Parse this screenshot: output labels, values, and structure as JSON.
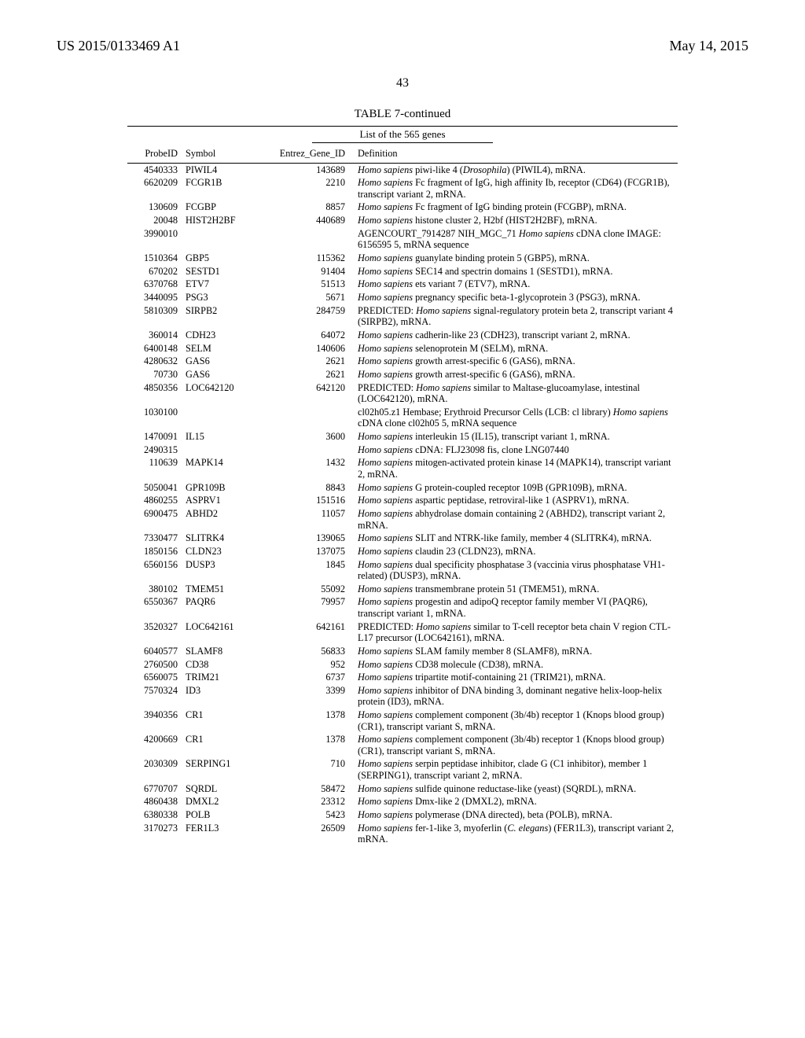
{
  "header": {
    "left": "US 2015/0133469 A1",
    "right": "May 14, 2015"
  },
  "page_number": "43",
  "table": {
    "caption": "TABLE 7-continued",
    "list_title": "List of the 565 genes",
    "columns": {
      "probe": "ProbeID",
      "symbol": "Symbol",
      "entrez": "Entrez_Gene_ID",
      "definition": "Definition"
    },
    "font_size_pt": 12.3,
    "rows": [
      {
        "probe": "4540333",
        "symbol": "PIWIL4",
        "entrez": "143689",
        "def": [
          [
            "i",
            "Homo sapiens"
          ],
          [
            "t",
            " piwi-like 4 ("
          ],
          [
            "i",
            "Drosophila"
          ],
          [
            "t",
            ") (PIWIL4), mRNA."
          ]
        ]
      },
      {
        "probe": "6620209",
        "symbol": "FCGR1B",
        "entrez": "2210",
        "def": [
          [
            "i",
            "Homo sapiens"
          ],
          [
            "t",
            " Fc fragment of IgG, high affinity Ib, receptor (CD64) (FCGR1B), transcript variant 2, mRNA."
          ]
        ]
      },
      {
        "probe": "130609",
        "symbol": "FCGBP",
        "entrez": "8857",
        "def": [
          [
            "i",
            "Homo sapiens"
          ],
          [
            "t",
            " Fc fragment of IgG binding protein (FCGBP), mRNA."
          ]
        ]
      },
      {
        "probe": "20048",
        "symbol": "HIST2H2BF",
        "entrez": "440689",
        "def": [
          [
            "i",
            "Homo sapiens"
          ],
          [
            "t",
            " histone cluster 2, H2bf (HIST2H2BF), mRNA."
          ]
        ]
      },
      {
        "probe": "3990010",
        "symbol": "",
        "entrez": "",
        "def": [
          [
            "t",
            "AGENCOURT_7914287 NIH_MGC_71 "
          ],
          [
            "i",
            "Homo sapiens"
          ],
          [
            "t",
            " cDNA clone IMAGE: 6156595 5, mRNA sequence"
          ]
        ]
      },
      {
        "probe": "1510364",
        "symbol": "GBP5",
        "entrez": "115362",
        "def": [
          [
            "i",
            "Homo sapiens"
          ],
          [
            "t",
            " guanylate binding protein 5 (GBP5), mRNA."
          ]
        ]
      },
      {
        "probe": "670202",
        "symbol": "SESTD1",
        "entrez": "91404",
        "def": [
          [
            "i",
            "Homo sapiens"
          ],
          [
            "t",
            " SEC14 and spectrin domains 1 (SESTD1), mRNA."
          ]
        ]
      },
      {
        "probe": "6370768",
        "symbol": "ETV7",
        "entrez": "51513",
        "def": [
          [
            "i",
            "Homo sapiens"
          ],
          [
            "t",
            " ets variant 7 (ETV7), mRNA."
          ]
        ]
      },
      {
        "probe": "3440095",
        "symbol": "PSG3",
        "entrez": "5671",
        "def": [
          [
            "i",
            "Homo sapiens"
          ],
          [
            "t",
            " pregnancy specific beta-1-glycoprotein 3 (PSG3), mRNA."
          ]
        ]
      },
      {
        "probe": "5810309",
        "symbol": "SIRPB2",
        "entrez": "284759",
        "def": [
          [
            "t",
            "PREDICTED: "
          ],
          [
            "i",
            "Homo sapiens"
          ],
          [
            "t",
            " signal-regulatory protein beta 2, transcript variant 4 (SIRPB2), mRNA."
          ]
        ]
      },
      {
        "probe": "360014",
        "symbol": "CDH23",
        "entrez": "64072",
        "def": [
          [
            "i",
            "Homo sapiens"
          ],
          [
            "t",
            " cadherin-like 23 (CDH23), transcript variant 2, mRNA."
          ]
        ]
      },
      {
        "probe": "6400148",
        "symbol": "SELM",
        "entrez": "140606",
        "def": [
          [
            "i",
            "Homo sapiens"
          ],
          [
            "t",
            " selenoprotein M (SELM), mRNA."
          ]
        ]
      },
      {
        "probe": "4280632",
        "symbol": "GAS6",
        "entrez": "2621",
        "def": [
          [
            "i",
            "Homo sapiens"
          ],
          [
            "t",
            " growth arrest-specific 6 (GAS6), mRNA."
          ]
        ]
      },
      {
        "probe": "70730",
        "symbol": "GAS6",
        "entrez": "2621",
        "def": [
          [
            "i",
            "Homo sapiens"
          ],
          [
            "t",
            " growth arrest-specific 6 (GAS6), mRNA."
          ]
        ]
      },
      {
        "probe": "4850356",
        "symbol": "LOC642120",
        "entrez": "642120",
        "def": [
          [
            "t",
            "PREDICTED: "
          ],
          [
            "i",
            "Homo sapiens"
          ],
          [
            "t",
            " similar to Maltase-glucoamylase, intestinal (LOC642120), mRNA."
          ]
        ]
      },
      {
        "probe": "1030100",
        "symbol": "",
        "entrez": "",
        "def": [
          [
            "t",
            "cl02h05.z1 Hembase; Erythroid Precursor Cells (LCB: cl library) "
          ],
          [
            "i",
            "Homo sapiens"
          ],
          [
            "t",
            " cDNA clone cl02h05 5, mRNA sequence"
          ]
        ]
      },
      {
        "probe": "1470091",
        "symbol": "IL15",
        "entrez": "3600",
        "def": [
          [
            "i",
            "Homo sapiens"
          ],
          [
            "t",
            " interleukin 15 (IL15), transcript variant 1, mRNA."
          ]
        ]
      },
      {
        "probe": "2490315",
        "symbol": "",
        "entrez": "",
        "def": [
          [
            "i",
            "Homo sapiens"
          ],
          [
            "t",
            " cDNA: FLJ23098 fis, clone LNG07440"
          ]
        ]
      },
      {
        "probe": "110639",
        "symbol": "MAPK14",
        "entrez": "1432",
        "def": [
          [
            "i",
            "Homo sapiens"
          ],
          [
            "t",
            " mitogen-activated protein kinase 14 (MAPK14), transcript variant 2, mRNA."
          ]
        ]
      },
      {
        "probe": "5050041",
        "symbol": "GPR109B",
        "entrez": "8843",
        "def": [
          [
            "i",
            "Homo sapiens"
          ],
          [
            "t",
            " G protein-coupled receptor 109B (GPR109B), mRNA."
          ]
        ]
      },
      {
        "probe": "4860255",
        "symbol": "ASPRV1",
        "entrez": "151516",
        "def": [
          [
            "i",
            "Homo sapiens"
          ],
          [
            "t",
            " aspartic peptidase, retroviral-like 1 (ASPRV1), mRNA."
          ]
        ]
      },
      {
        "probe": "6900475",
        "symbol": "ABHD2",
        "entrez": "11057",
        "def": [
          [
            "i",
            "Homo sapiens"
          ],
          [
            "t",
            " abhydrolase domain containing 2 (ABHD2), transcript variant 2, mRNA."
          ]
        ]
      },
      {
        "probe": "7330477",
        "symbol": "SLITRK4",
        "entrez": "139065",
        "def": [
          [
            "i",
            "Homo sapiens"
          ],
          [
            "t",
            " SLIT and NTRK-like family, member 4 (SLITRK4), mRNA."
          ]
        ]
      },
      {
        "probe": "1850156",
        "symbol": "CLDN23",
        "entrez": "137075",
        "def": [
          [
            "i",
            "Homo sapiens"
          ],
          [
            "t",
            " claudin 23 (CLDN23), mRNA."
          ]
        ]
      },
      {
        "probe": "6560156",
        "symbol": "DUSP3",
        "entrez": "1845",
        "def": [
          [
            "i",
            "Homo sapiens"
          ],
          [
            "t",
            " dual specificity phosphatase 3 (vaccinia virus phosphatase VH1-related) (DUSP3), mRNA."
          ]
        ]
      },
      {
        "probe": "380102",
        "symbol": "TMEM51",
        "entrez": "55092",
        "def": [
          [
            "i",
            "Homo sapiens"
          ],
          [
            "t",
            " transmembrane protein 51 (TMEM51), mRNA."
          ]
        ]
      },
      {
        "probe": "6550367",
        "symbol": "PAQR6",
        "entrez": "79957",
        "def": [
          [
            "i",
            "Homo sapiens"
          ],
          [
            "t",
            " progestin and adipoQ receptor family member VI (PAQR6), transcript variant 1, mRNA."
          ]
        ]
      },
      {
        "probe": "3520327",
        "symbol": "LOC642161",
        "entrez": "642161",
        "def": [
          [
            "t",
            "PREDICTED: "
          ],
          [
            "i",
            "Homo sapiens"
          ],
          [
            "t",
            " similar to T-cell receptor beta chain V region CTL-L17 precursor (LOC642161), mRNA."
          ]
        ]
      },
      {
        "probe": "6040577",
        "symbol": "SLAMF8",
        "entrez": "56833",
        "def": [
          [
            "i",
            "Homo sapiens"
          ],
          [
            "t",
            " SLAM family member 8 (SLAMF8), mRNA."
          ]
        ]
      },
      {
        "probe": "2760500",
        "symbol": "CD38",
        "entrez": "952",
        "def": [
          [
            "i",
            "Homo sapiens"
          ],
          [
            "t",
            " CD38 molecule (CD38), mRNA."
          ]
        ]
      },
      {
        "probe": "6560075",
        "symbol": "TRIM21",
        "entrez": "6737",
        "def": [
          [
            "i",
            "Homo sapiens"
          ],
          [
            "t",
            " tripartite motif-containing 21 (TRIM21), mRNA."
          ]
        ]
      },
      {
        "probe": "7570324",
        "symbol": "ID3",
        "entrez": "3399",
        "def": [
          [
            "i",
            "Homo sapiens"
          ],
          [
            "t",
            " inhibitor of DNA binding 3, dominant negative helix-loop-helix protein (ID3), mRNA."
          ]
        ]
      },
      {
        "probe": "3940356",
        "symbol": "CR1",
        "entrez": "1378",
        "def": [
          [
            "i",
            "Homo sapiens"
          ],
          [
            "t",
            " complement component (3b/4b) receptor 1 (Knops blood group) (CR1), transcript variant S, mRNA."
          ]
        ]
      },
      {
        "probe": "4200669",
        "symbol": "CR1",
        "entrez": "1378",
        "def": [
          [
            "i",
            "Homo sapiens"
          ],
          [
            "t",
            " complement component (3b/4b) receptor 1 (Knops blood group) (CR1), transcript variant S, mRNA."
          ]
        ]
      },
      {
        "probe": "2030309",
        "symbol": "SERPING1",
        "entrez": "710",
        "def": [
          [
            "i",
            "Homo sapiens"
          ],
          [
            "t",
            " serpin peptidase inhibitor, clade G (C1 inhibitor), member 1 (SERPING1), transcript variant 2, mRNA."
          ]
        ]
      },
      {
        "probe": "6770707",
        "symbol": "SQRDL",
        "entrez": "58472",
        "def": [
          [
            "i",
            "Homo sapiens"
          ],
          [
            "t",
            " sulfide quinone reductase-like (yeast) (SQRDL), mRNA."
          ]
        ]
      },
      {
        "probe": "4860438",
        "symbol": "DMXL2",
        "entrez": "23312",
        "def": [
          [
            "i",
            "Homo sapiens"
          ],
          [
            "t",
            " Dmx-like 2 (DMXL2), mRNA."
          ]
        ]
      },
      {
        "probe": "6380338",
        "symbol": "POLB",
        "entrez": "5423",
        "def": [
          [
            "i",
            "Homo sapiens"
          ],
          [
            "t",
            " polymerase (DNA directed), beta (POLB), mRNA."
          ]
        ]
      },
      {
        "probe": "3170273",
        "symbol": "FER1L3",
        "entrez": "26509",
        "def": [
          [
            "i",
            "Homo sapiens"
          ],
          [
            "t",
            " fer-1-like 3, myoferlin ("
          ],
          [
            "i",
            "C. elegans"
          ],
          [
            "t",
            ") (FER1L3), transcript variant 2, mRNA."
          ]
        ]
      }
    ]
  }
}
